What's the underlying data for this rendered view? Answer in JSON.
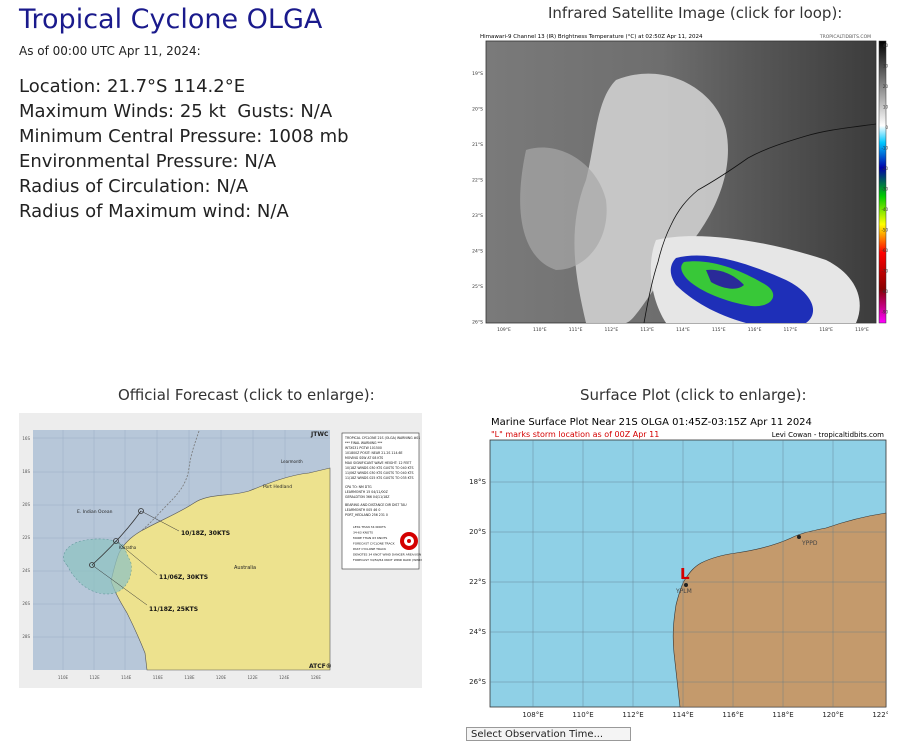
{
  "header": {
    "title": "Tropical Cyclone OLGA",
    "as_of": "As of 00:00 UTC Apr 11, 2024:"
  },
  "stats": [
    {
      "label": "Location:",
      "value": "21.7°S 114.2°E"
    },
    {
      "label": "Maximum Winds:",
      "value": "25 kt  Gusts: N/A"
    },
    {
      "label": "Minimum Central Pressure:",
      "value": "1008 mb"
    },
    {
      "label": "Environmental Pressure:",
      "value": "N/A"
    },
    {
      "label": "Radius of Circulation:",
      "value": "N/A"
    },
    {
      "label": "Radius of Maximum wind:",
      "value": "N/A"
    }
  ],
  "satellite": {
    "caption": "Infrared Satellite Image (click for loop):",
    "header_left": "Himawari-9 Channel 13 (IR) Brightness Temperature (°C) at 02:50Z Apr 11, 2024",
    "header_right": "TROPICALTIDBITS.COM",
    "lat_labels": [
      "19°S",
      "20°S",
      "21°S",
      "22°S",
      "23°S",
      "24°S",
      "25°S",
      "26°S"
    ],
    "lon_labels": [
      "109°E",
      "110°E",
      "111°E",
      "112°E",
      "113°E",
      "114°E",
      "115°E",
      "116°E",
      "117°E",
      "118°E",
      "119°E"
    ],
    "scale_labels": [
      "40",
      "30",
      "20",
      "10",
      "0",
      "-10",
      "-20",
      "-30",
      "-40",
      "-50",
      "-60",
      "-70",
      "-80",
      "-90"
    ]
  },
  "forecast": {
    "caption": "Official Forecast (click to enlarge):",
    "agency": "JTWC",
    "footer_agency": "ATCF®",
    "labels": {
      "p1": "10/18Z, 30KTS",
      "p2": "11/06Z, 30KTS",
      "p3": "11/18Z, 25KTS",
      "ocean": "E. Indian Ocean",
      "country": "Australia",
      "town1": "Port Hedland",
      "town2": "Karratha",
      "town3": "Learmonth"
    },
    "lat_labels": [
      "16S",
      "18S",
      "20S",
      "22S",
      "24S",
      "26S",
      "28S"
    ],
    "lon_labels": [
      "110E",
      "112E",
      "114E",
      "116E",
      "118E",
      "120E",
      "122E",
      "124E",
      "126E"
    ],
    "warning_text": [
      "TROPICAL CYCLONE 21S (OLGA) WARNING #01",
      "*** FINAL WARNING ***",
      "WTXS31 PGTW 101500",
      "101800Z POSIT: NEAR 21.2S 114.6E",
      "MOVING SSW AT 08 KTS",
      "MAX SIGNIFICANT WAVE HEIGHT: 12 FEET",
      "10/18Z  WINDS 030 KTS  GUSTS TO 040 KTS",
      "11/06Z  WINDS 030 KTS  GUSTS TO 040 KTS",
      "11/18Z  WINDS 025 KTS  GUSTS TO 035 KTS"
    ],
    "cpa_text": [
      "CPA TO:           NM    DTG",
      "LEARMONTH          15   04/11/00Z",
      "GERALDTON         366   04/11/18Z"
    ],
    "bearing_text": [
      "BEARING AND DISTANCE   DIR  DIST  TAU",
      "LEARMONTH              005   46    0",
      "PORT_HEDLAND           256  231    0"
    ],
    "legend": [
      "LESS THAN 34 KNOTS",
      "34-63 KNOTS",
      "MORE THAN 63 KNOTS",
      "FORECAST CYCLONE TRACK",
      "PAST CYCLONE TRACK",
      "DENOTES 34 KNOT WIND DANGER AREA/USN SHIP AVOIDANCE AREA",
      "FORECAST 34/50/64 KNOT WIND RADII (WINDS VALID OVER OPEN OCEAN ONLY)"
    ]
  },
  "surface": {
    "caption": "Surface Plot (click to enlarge):",
    "title": "Marine Surface Plot Near 21S OLGA 01:45Z-03:15Z Apr 11 2024",
    "subtitle": "\"L\" marks storm location as of 00Z Apr 11",
    "credit": "Levi Cowan - tropicaltidbits.com",
    "storm_marker": "L",
    "lat_labels": [
      "18°S",
      "20°S",
      "22°S",
      "24°S",
      "26°S"
    ],
    "lon_labels": [
      "108°E",
      "110°E",
      "112°E",
      "114°E",
      "116°E",
      "118°E",
      "120°E",
      "122°E"
    ],
    "station_labels": [
      "YPPD",
      "YPLM"
    ]
  },
  "footer": {
    "select_label": "Select Observation Time..."
  },
  "colors": {
    "title": "#1a1a8c",
    "ocean_surface": "#8fd0e6",
    "land_surface": "#c49a6c",
    "forecast_ocean": "#b7c7d9",
    "forecast_land": "#ede28e",
    "storm_red": "#d40000"
  }
}
